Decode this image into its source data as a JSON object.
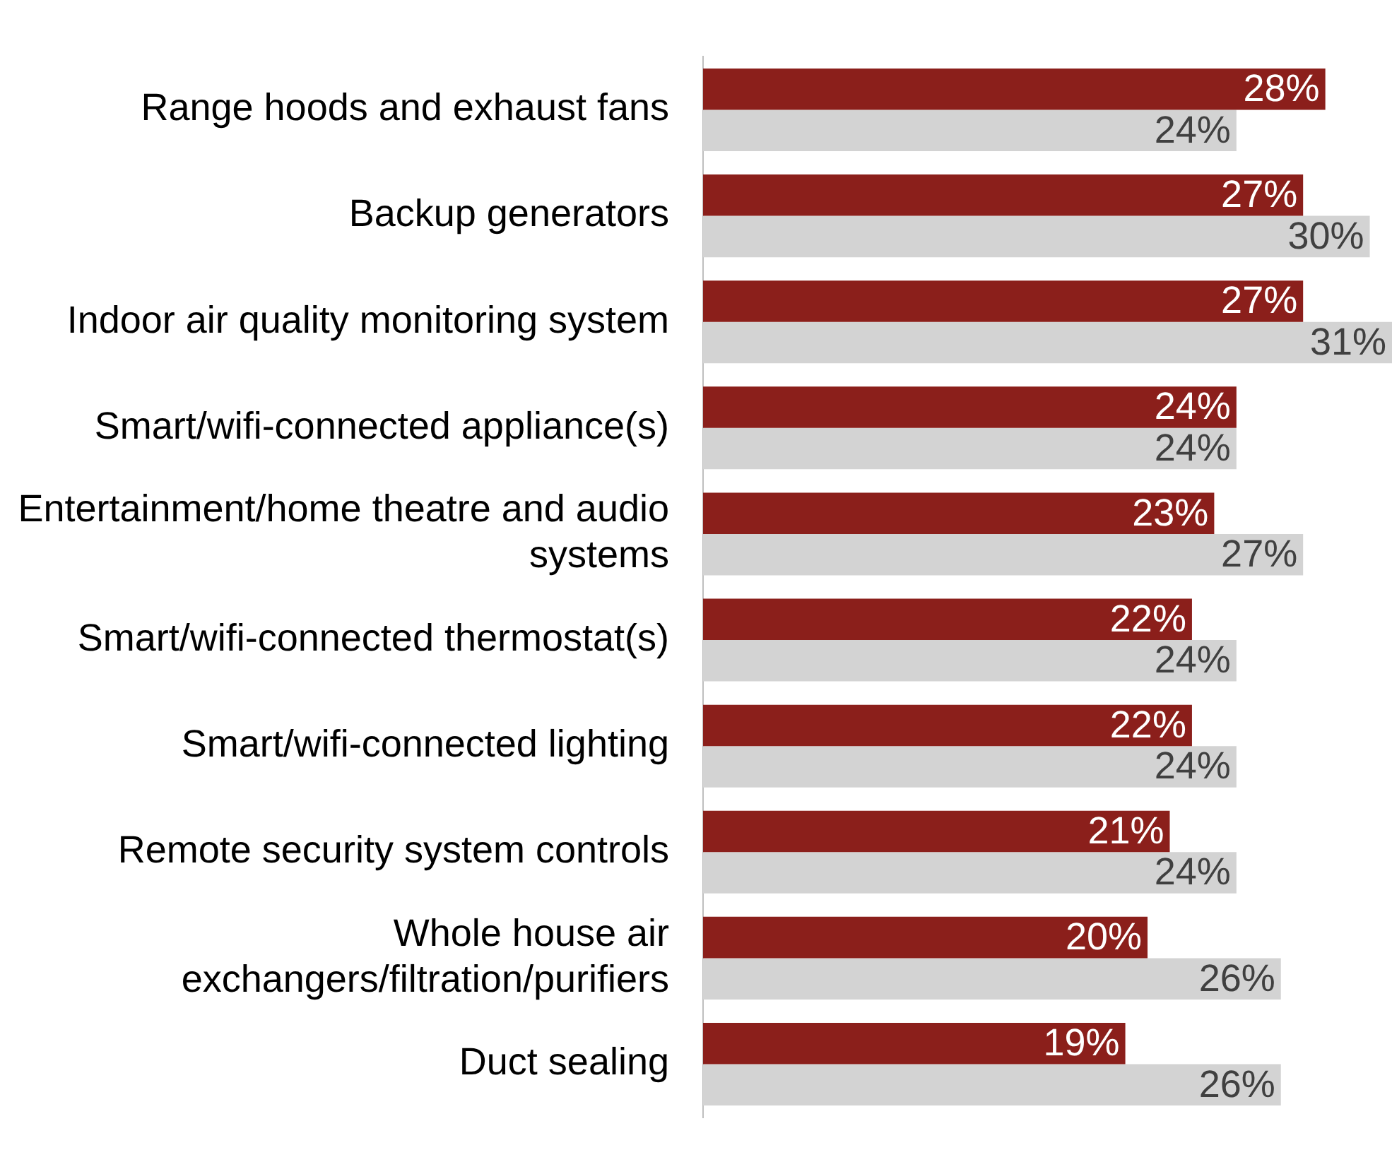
{
  "chart_data": {
    "type": "bar",
    "orientation": "horizontal",
    "legend": false,
    "categories": [
      "Range hoods and exhaust fans",
      "Backup generators",
      "Indoor air quality monitoring system",
      "Smart/wifi-connected appliance(s)",
      "Entertainment/home theatre and audio systems",
      "Smart/wifi-connected thermostat(s)",
      "Smart/wifi-connected lighting",
      "Remote security system controls",
      "Whole house air exchangers/filtration/purifiers",
      "Duct sealing"
    ],
    "series": [
      {
        "color": "#8b1f1b",
        "values": [
          28,
          27,
          27,
          24,
          23,
          22,
          22,
          21,
          20,
          19
        ],
        "value_labels": [
          "28%",
          "27%",
          "27%",
          "24%",
          "23%",
          "22%",
          "22%",
          "21%",
          "20%",
          "19%"
        ]
      },
      {
        "color": "#d3d3d3",
        "values": [
          24,
          30,
          31,
          24,
          27,
          24,
          24,
          24,
          26,
          26
        ],
        "value_labels": [
          "24%",
          "30%",
          "31%",
          "24%",
          "27%",
          "24%",
          "24%",
          "24%",
          "26%",
          "26%"
        ]
      }
    ]
  }
}
